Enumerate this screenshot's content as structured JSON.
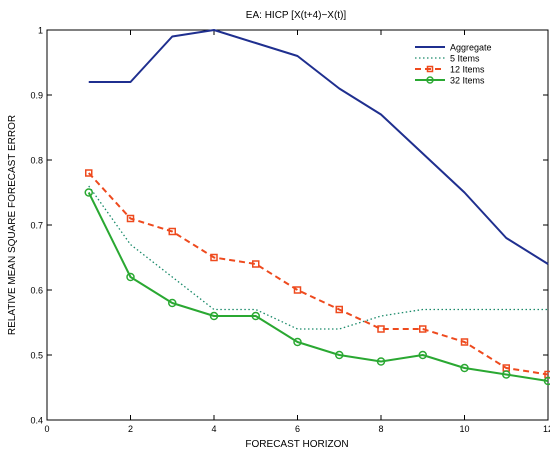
{
  "chart_data": {
    "type": "line",
    "title": "EA: HICP [X(t+4)−X(t)]",
    "xlabel": "FORECAST HORIZON",
    "ylabel": "RELATIVE MEAN SQUARE FORECAST ERROR",
    "xlim": [
      0,
      12
    ],
    "ylim": [
      0.4,
      1.0
    ],
    "xticks": [
      0,
      2,
      4,
      6,
      8,
      10,
      12
    ],
    "xtick_labels": [
      "0",
      "2",
      "4",
      "6",
      "8",
      "10",
      "12"
    ],
    "yticks": [
      0.4,
      0.5,
      0.6,
      0.7,
      0.8,
      0.9,
      1.0
    ],
    "ytick_labels": [
      "0.4",
      "0.5",
      "0.6",
      "0.7",
      "0.8",
      "0.9",
      "1"
    ],
    "grid": false,
    "legend_position": "top-right",
    "series": [
      {
        "name": "Aggregate",
        "color": "#1f2f8f",
        "style": "solid",
        "marker": "none",
        "x": [
          1,
          2,
          3,
          4,
          5,
          6,
          7,
          8,
          9,
          10,
          11,
          12
        ],
        "values": [
          0.92,
          0.92,
          0.99,
          1.0,
          0.98,
          0.96,
          0.91,
          0.87,
          0.81,
          0.75,
          0.68,
          0.64
        ]
      },
      {
        "name": "5 Items",
        "color": "#1a8a6a",
        "style": "dotted",
        "marker": "none",
        "x": [
          1,
          2,
          3,
          4,
          5,
          6,
          7,
          8,
          9,
          10,
          11,
          12
        ],
        "values": [
          0.76,
          0.67,
          0.62,
          0.57,
          0.57,
          0.54,
          0.54,
          0.56,
          0.57,
          0.57,
          0.57,
          0.57
        ]
      },
      {
        "name": "12 Items",
        "color": "#ee4a1e",
        "style": "dashed",
        "marker": "square",
        "x": [
          1,
          2,
          3,
          4,
          5,
          6,
          7,
          8,
          9,
          10,
          11,
          12
        ],
        "values": [
          0.78,
          0.71,
          0.69,
          0.65,
          0.64,
          0.6,
          0.57,
          0.54,
          0.54,
          0.52,
          0.48,
          0.47
        ]
      },
      {
        "name": "32 Items",
        "color": "#2aa832",
        "style": "solid",
        "marker": "circle",
        "x": [
          1,
          2,
          3,
          4,
          5,
          6,
          7,
          8,
          9,
          10,
          11,
          12
        ],
        "values": [
          0.75,
          0.62,
          0.58,
          0.56,
          0.56,
          0.52,
          0.5,
          0.49,
          0.5,
          0.48,
          0.47,
          0.46
        ]
      }
    ]
  }
}
